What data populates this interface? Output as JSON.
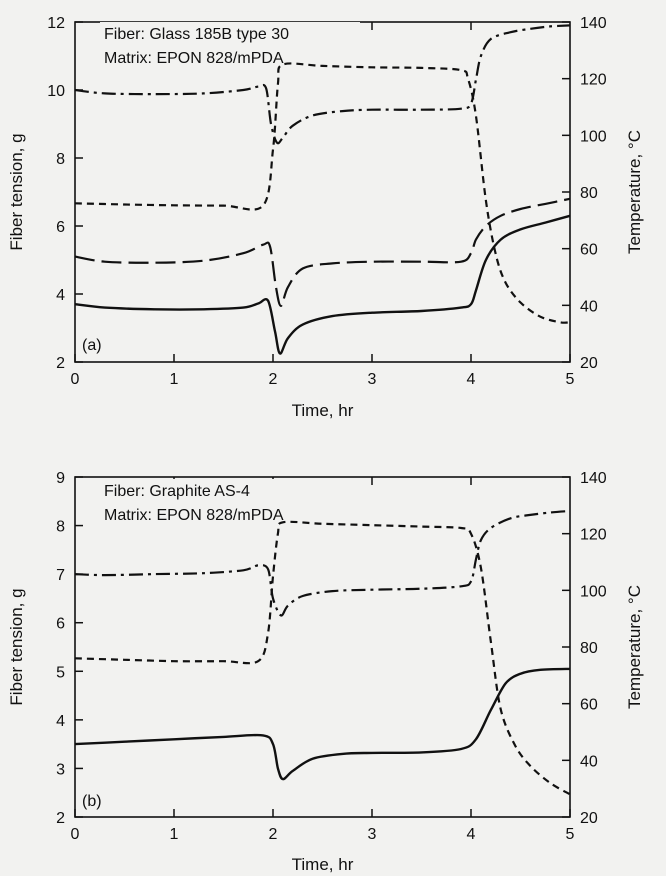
{
  "chart_data": [
    {
      "type": "line",
      "panel_label": "(a)",
      "annotations": [
        "Fiber: Glass 185B type 30",
        "Matrix: EPON 828/mPDA"
      ],
      "xlabel": "Time, hr",
      "ylabel": "Fiber tension, g",
      "y2label": "Temperature, °C",
      "xlim": [
        0,
        5
      ],
      "ylim": [
        2,
        12
      ],
      "y2lim": [
        20,
        140
      ],
      "xticks": [
        "0",
        "1",
        "2",
        "3",
        "4",
        "5"
      ],
      "yticks": [
        "2",
        "4",
        "6",
        "8",
        "10",
        "12"
      ],
      "y2ticks": [
        "20",
        "40",
        "60",
        "80",
        "100",
        "120",
        "140"
      ],
      "grid": false,
      "series": [
        {
          "style": "solid",
          "axis": "left",
          "x": [
            0,
            0.3,
            0.8,
            1.3,
            1.7,
            1.85,
            1.95,
            2.02,
            2.07,
            2.15,
            2.3,
            2.6,
            3.0,
            3.5,
            3.9,
            4.0,
            4.05,
            4.15,
            4.3,
            4.5,
            4.75,
            5.0
          ],
          "y": [
            3.7,
            3.6,
            3.55,
            3.55,
            3.6,
            3.72,
            3.8,
            2.9,
            2.25,
            2.7,
            3.1,
            3.35,
            3.45,
            3.5,
            3.6,
            3.7,
            4.1,
            5.0,
            5.6,
            5.9,
            6.1,
            6.3
          ]
        },
        {
          "style": "long-dash",
          "axis": "left",
          "x": [
            0,
            0.3,
            0.8,
            1.3,
            1.7,
            1.9,
            1.97,
            2.03,
            2.08,
            2.15,
            2.3,
            2.6,
            3.0,
            3.5,
            3.9,
            4.0,
            4.05,
            4.15,
            4.3,
            4.5,
            4.75,
            5.0
          ],
          "y": [
            5.1,
            4.95,
            4.92,
            4.98,
            5.2,
            5.45,
            5.4,
            4.2,
            3.65,
            4.2,
            4.75,
            4.9,
            4.95,
            4.95,
            4.95,
            5.2,
            5.6,
            6.0,
            6.3,
            6.5,
            6.65,
            6.8
          ]
        },
        {
          "style": "dash-dot",
          "axis": "left",
          "x": [
            0,
            0.3,
            0.8,
            1.3,
            1.7,
            1.85,
            1.93,
            1.98,
            2.04,
            2.1,
            2.2,
            2.4,
            2.7,
            3.0,
            3.5,
            3.9,
            4.0,
            4.05,
            4.1,
            4.2,
            4.4,
            4.6,
            4.8,
            5.0
          ],
          "y": [
            10.0,
            9.9,
            9.88,
            9.9,
            10.0,
            10.1,
            10.05,
            9.0,
            8.45,
            8.6,
            8.95,
            9.25,
            9.38,
            9.42,
            9.42,
            9.45,
            9.6,
            10.3,
            11.0,
            11.5,
            11.7,
            11.8,
            11.87,
            11.9
          ]
        },
        {
          "style": "short-dash",
          "axis": "right",
          "x": [
            0,
            0.5,
            1.0,
            1.5,
            1.9,
            2.0,
            2.05,
            2.1,
            2.5,
            3.0,
            3.5,
            3.9,
            3.97,
            4.05,
            4.15,
            4.25,
            4.35,
            4.5,
            4.7,
            4.9,
            5.0
          ],
          "y": [
            76,
            75.6,
            75.3,
            75.2,
            75.2,
            95,
            118,
            125,
            124.5,
            124,
            123.8,
            123,
            120,
            107,
            77,
            58,
            48,
            41,
            36,
            34,
            34
          ]
        }
      ]
    },
    {
      "type": "line",
      "panel_label": "(b)",
      "annotations": [
        "Fiber: Graphite AS-4",
        "Matrix: EPON 828/mPDA"
      ],
      "xlabel": "Time, hr",
      "ylabel": "Fiber tension, g",
      "y2label": "Temperature, °C",
      "xlim": [
        0,
        5
      ],
      "ylim": [
        2,
        9
      ],
      "y2lim": [
        20,
        140
      ],
      "xticks": [
        "0",
        "1",
        "2",
        "3",
        "4",
        "5"
      ],
      "yticks": [
        "2",
        "3",
        "4",
        "5",
        "6",
        "7",
        "8",
        "9"
      ],
      "y2ticks": [
        "20",
        "40",
        "60",
        "80",
        "100",
        "120",
        "140"
      ],
      "grid": false,
      "series": [
        {
          "style": "solid",
          "axis": "left",
          "x": [
            0,
            0.5,
            1.0,
            1.5,
            1.9,
            2.0,
            2.05,
            2.1,
            2.2,
            2.4,
            2.7,
            3.0,
            3.5,
            3.9,
            4.05,
            4.2,
            4.35,
            4.5,
            4.7,
            5.0
          ],
          "y": [
            3.5,
            3.55,
            3.6,
            3.65,
            3.68,
            3.5,
            3.0,
            2.78,
            2.95,
            3.2,
            3.3,
            3.32,
            3.33,
            3.4,
            3.6,
            4.2,
            4.75,
            4.95,
            5.03,
            5.05
          ]
        },
        {
          "style": "dash-dot",
          "axis": "left",
          "x": [
            0,
            0.3,
            0.8,
            1.3,
            1.7,
            1.85,
            1.95,
            2.0,
            2.08,
            2.15,
            2.3,
            2.6,
            3.0,
            3.5,
            3.9,
            4.0,
            4.05,
            4.1,
            4.2,
            4.4,
            4.6,
            4.8,
            5.0
          ],
          "y": [
            7.0,
            6.98,
            7.0,
            7.02,
            7.08,
            7.18,
            7.1,
            6.5,
            6.15,
            6.35,
            6.55,
            6.65,
            6.68,
            6.7,
            6.75,
            6.85,
            7.3,
            7.7,
            7.95,
            8.15,
            8.22,
            8.27,
            8.3
          ]
        },
        {
          "style": "short-dash",
          "axis": "right",
          "x": [
            0,
            0.5,
            1.0,
            1.5,
            1.85,
            1.95,
            2.0,
            2.05,
            2.1,
            2.5,
            3.0,
            3.5,
            3.9,
            4.0,
            4.1,
            4.2,
            4.3,
            4.45,
            4.6,
            4.8,
            5.0
          ],
          "y": [
            76,
            75.5,
            75,
            75,
            75,
            85,
            105,
            120,
            124,
            123.5,
            123,
            122.5,
            122,
            120,
            108,
            82,
            58,
            45,
            38,
            32,
            28
          ]
        }
      ]
    }
  ]
}
